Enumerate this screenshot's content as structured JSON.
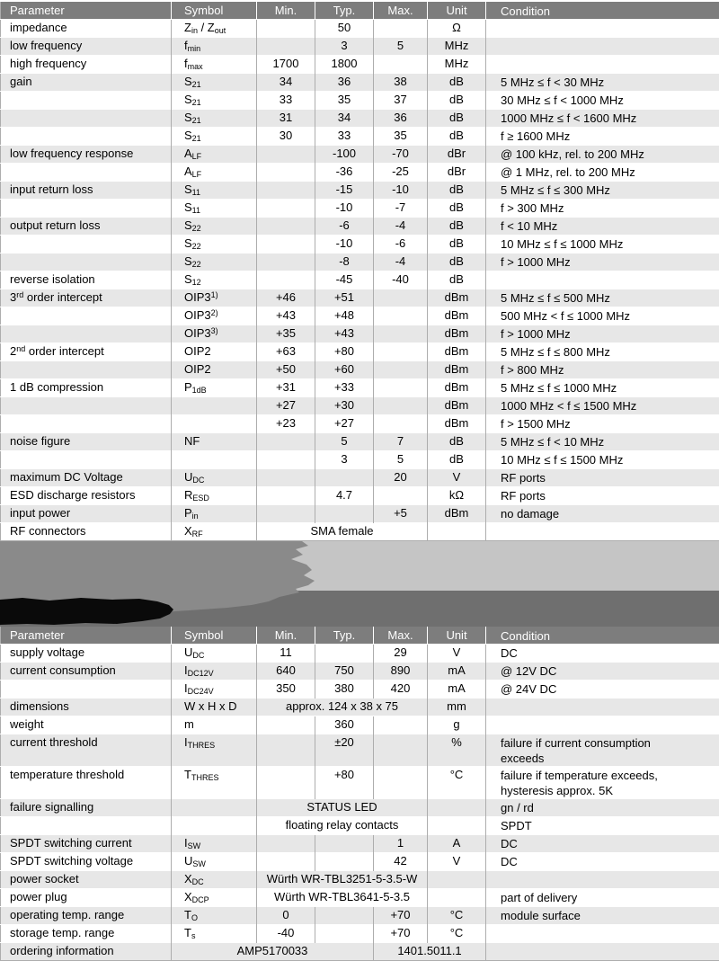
{
  "colors": {
    "header_bg": "#7d7d7d",
    "header_text": "#ffffff",
    "row_stripe_bg": "#e7e7e7",
    "row_bg": "#ffffff",
    "grid_vertical": "#adadad",
    "grid_horizontal": "#ffffff",
    "redacted_light": "#c5c5c5",
    "redacted_medium": "#8a8a8a",
    "redacted_dark": "#6f6f6f",
    "redacted_black": "#0a0a0a"
  },
  "rf_table": {
    "columns": [
      "Parameter",
      "Symbol",
      "Min.",
      "Typ.",
      "Max.",
      "Unit",
      "Condition"
    ],
    "rows": [
      {
        "c": [
          "impedance",
          "Z~in~ / Z~out~",
          "",
          "50",
          "",
          "Ω",
          ""
        ]
      },
      {
        "c": [
          "low frequency",
          "f~min~",
          "",
          "3",
          "5",
          "MHz",
          ""
        ]
      },
      {
        "c": [
          "high frequency",
          "f~max~",
          "1700",
          "1800",
          "",
          "MHz",
          ""
        ]
      },
      {
        "c": [
          "gain",
          "S~21~",
          "34",
          "36",
          "38",
          "dB",
          "5 MHz ≤ f < 30 MHz"
        ]
      },
      {
        "c": [
          "",
          "S~21~",
          "33",
          "35",
          "37",
          "dB",
          "30 MHz ≤ f < 1000 MHz"
        ]
      },
      {
        "c": [
          "",
          "S~21~",
          "31",
          "34",
          "36",
          "dB",
          "1000 MHz ≤ f < 1600 MHz"
        ]
      },
      {
        "c": [
          "",
          "S~21~",
          "30",
          "33",
          "35",
          "dB",
          "f ≥ 1600 MHz"
        ]
      },
      {
        "c": [
          "low frequency response",
          "A~LF~",
          "",
          "-100",
          "-70",
          "dBr",
          "@ 100 kHz, rel. to 200 MHz"
        ]
      },
      {
        "c": [
          "",
          "A~LF~",
          "",
          "-36",
          "-25",
          "dBr",
          "@ 1 MHz, rel. to 200 MHz"
        ]
      },
      {
        "c": [
          "input return loss",
          "S~11~",
          "",
          "-15",
          "-10",
          "dB",
          "5 MHz ≤ f ≤ 300 MHz"
        ]
      },
      {
        "c": [
          "",
          "S~11~",
          "",
          "-10",
          "-7",
          "dB",
          "f > 300 MHz"
        ]
      },
      {
        "c": [
          "output return loss",
          "S~22~",
          "",
          "-6",
          "-4",
          "dB",
          "f < 10 MHz"
        ]
      },
      {
        "c": [
          "",
          "S~22~",
          "",
          "-10",
          "-6",
          "dB",
          "10 MHz ≤ f ≤ 1000 MHz"
        ]
      },
      {
        "c": [
          "",
          "S~22~",
          "",
          "-8",
          "-4",
          "dB",
          "f > 1000 MHz"
        ]
      },
      {
        "c": [
          "reverse isolation",
          "S~12~",
          "",
          "-45",
          "-40",
          "dB",
          ""
        ]
      },
      {
        "c": [
          "3^rd^ order intercept",
          "OIP3^1)^",
          "+46",
          "+51",
          "",
          "dBm",
          "5 MHz ≤ f ≤ 500 MHz"
        ]
      },
      {
        "c": [
          "",
          "OIP3^2)^",
          "+43",
          "+48",
          "",
          "dBm",
          "500 MHz < f ≤ 1000 MHz"
        ]
      },
      {
        "c": [
          "",
          "OIP3^3)^",
          "+35",
          "+43",
          "",
          "dBm",
          "f > 1000 MHz"
        ]
      },
      {
        "c": [
          "2^nd^ order intercept",
          "OIP2",
          "+63",
          "+80",
          "",
          "dBm",
          "5 MHz ≤ f ≤ 800 MHz"
        ]
      },
      {
        "c": [
          "",
          "OIP2",
          "+50",
          "+60",
          "",
          "dBm",
          "f > 800 MHz"
        ]
      },
      {
        "c": [
          "1 dB compression",
          "P~1dB~",
          "+31",
          "+33",
          "",
          "dBm",
          "5 MHz ≤ f ≤ 1000 MHz"
        ]
      },
      {
        "c": [
          "",
          "",
          "+27",
          "+30",
          "",
          "dBm",
          "1000 MHz < f ≤ 1500 MHz"
        ]
      },
      {
        "c": [
          "",
          "",
          "+23",
          "+27",
          "",
          "dBm",
          "f > 1500 MHz"
        ]
      },
      {
        "c": [
          "noise figure",
          "NF",
          "",
          "5",
          "7",
          "dB",
          "5 MHz ≤ f < 10 MHz"
        ]
      },
      {
        "c": [
          "",
          "",
          "",
          "3",
          "5",
          "dB",
          "10 MHz ≤ f ≤ 1500 MHz"
        ]
      },
      {
        "c": [
          "maximum DC Voltage",
          "U~DC~",
          "",
          "",
          "20",
          "V",
          "RF ports"
        ]
      },
      {
        "c": [
          "ESD discharge resistors",
          "R~ESD~",
          "",
          "4.7",
          "",
          "kΩ",
          "RF ports"
        ]
      },
      {
        "c": [
          "input power",
          "P~in~",
          "",
          "",
          "+5",
          "dBm",
          "no damage"
        ]
      },
      {
        "c": [
          "RF connectors",
          "X~RF~",
          "SMA female",
          "",
          ""
        ],
        "m": 3
      }
    ]
  },
  "general_table": {
    "columns": [
      "Parameter",
      "Symbol",
      "Min.",
      "Typ.",
      "Max.",
      "Unit",
      "Condition"
    ],
    "rows": [
      {
        "c": [
          "supply voltage",
          "U~DC~",
          "11",
          "",
          "29",
          "V",
          "DC"
        ]
      },
      {
        "c": [
          "current consumption",
          "I~DC12V~",
          "640",
          "750",
          "890",
          "mA",
          "@ 12V DC"
        ]
      },
      {
        "c": [
          "",
          "I~DC24V~",
          "350",
          "380",
          "420",
          "mA",
          "@ 24V DC"
        ]
      },
      {
        "c": [
          "dimensions",
          "W x H x D",
          "approx. 124 x 38 x 75",
          "mm",
          ""
        ],
        "m": 3
      },
      {
        "c": [
          "weight",
          "m",
          "",
          "360",
          "",
          "g",
          ""
        ]
      },
      {
        "c": [
          "current threshold",
          "I~THRES~",
          "",
          "±20",
          "",
          "%",
          "failure if current consumption\nexceeds"
        ]
      },
      {
        "c": [
          "temperature threshold",
          "T~THRES~",
          "",
          "+80",
          "",
          "°C",
          "failure if temperature exceeds,\nhysteresis approx. 5K"
        ]
      },
      {
        "c": [
          "failure signalling",
          "",
          "STATUS LED",
          "",
          "gn / rd"
        ],
        "m": 3
      },
      {
        "c": [
          "",
          "",
          "floating relay contacts",
          "",
          "SPDT"
        ],
        "m": 3
      },
      {
        "c": [
          "SPDT switching current",
          "I~SW~",
          "",
          "",
          "1",
          "A",
          "DC"
        ]
      },
      {
        "c": [
          "SPDT switching voltage",
          "U~SW~",
          "",
          "",
          "42",
          "V",
          "DC"
        ]
      },
      {
        "c": [
          "power socket",
          "X~DC~",
          "Würth WR-TBL3251-5-3.5-W",
          "",
          ""
        ],
        "m": 3
      },
      {
        "c": [
          "power plug",
          "X~DCP~",
          "Würth WR-TBL3641-5-3.5",
          "",
          "part of delivery"
        ],
        "m": 3
      },
      {
        "c": [
          "operating temp. range",
          "T~O~",
          "0",
          "",
          "+70",
          "°C",
          "module surface"
        ]
      },
      {
        "c": [
          "storage temp. range",
          "T~s~",
          "-40",
          "",
          "+70",
          "°C",
          ""
        ]
      },
      {
        "c": [
          "ordering information",
          "AMP5170033",
          "1401.5011.1",
          ""
        ],
        "m": "order"
      }
    ]
  }
}
